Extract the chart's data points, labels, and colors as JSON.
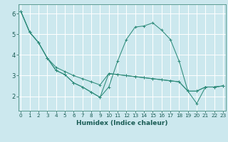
{
  "xlabel": "Humidex (Indice chaleur)",
  "bg_color": "#cce8ee",
  "grid_color": "#ffffff",
  "line_color": "#2e8b7a",
  "s1_x": [
    0,
    1,
    2,
    3,
    4,
    5,
    6,
    7,
    8,
    9,
    10,
    11,
    12,
    13,
    14,
    15,
    16,
    17,
    18,
    19,
    20,
    21,
    22,
    23
  ],
  "s1_y": [
    6.1,
    5.1,
    4.6,
    3.85,
    3.25,
    3.05,
    2.65,
    2.45,
    2.2,
    1.95,
    2.45,
    3.7,
    4.75,
    5.35,
    5.4,
    5.55,
    5.2,
    4.75,
    3.7,
    2.25,
    1.65,
    2.45,
    2.45,
    2.5
  ],
  "s2_x": [
    0,
    1,
    2,
    3,
    4,
    5,
    6,
    7,
    8,
    9,
    10,
    11,
    12,
    13,
    14,
    15,
    16,
    17,
    18,
    19,
    20,
    21,
    22,
    23
  ],
  "s2_y": [
    6.1,
    5.1,
    4.6,
    3.85,
    3.25,
    3.05,
    2.65,
    2.45,
    2.2,
    1.95,
    3.1,
    3.05,
    3.0,
    2.95,
    2.9,
    2.85,
    2.8,
    2.75,
    2.7,
    2.25,
    2.25,
    2.45,
    2.45,
    2.5
  ],
  "s3_x": [
    0,
    1,
    2,
    3,
    4,
    5,
    6,
    7,
    8,
    9,
    10,
    11,
    12,
    13,
    14,
    15,
    16,
    17,
    18,
    19,
    20,
    21,
    22,
    23
  ],
  "s3_y": [
    6.1,
    5.1,
    4.6,
    3.85,
    3.4,
    3.2,
    3.0,
    2.85,
    2.7,
    2.55,
    3.1,
    3.05,
    3.0,
    2.95,
    2.9,
    2.85,
    2.8,
    2.75,
    2.7,
    2.25,
    2.25,
    2.45,
    2.45,
    2.5
  ],
  "xlim": [
    -0.3,
    23.3
  ],
  "ylim": [
    1.3,
    6.45
  ],
  "yticks": [
    2,
    3,
    4,
    5,
    6
  ],
  "xticks": [
    0,
    1,
    2,
    3,
    4,
    5,
    6,
    7,
    8,
    9,
    10,
    11,
    12,
    13,
    14,
    15,
    16,
    17,
    18,
    19,
    20,
    21,
    22,
    23
  ],
  "xlabel_fontsize": 6.5,
  "tick_fontsize": 5.2,
  "ytick_fontsize": 6.0
}
